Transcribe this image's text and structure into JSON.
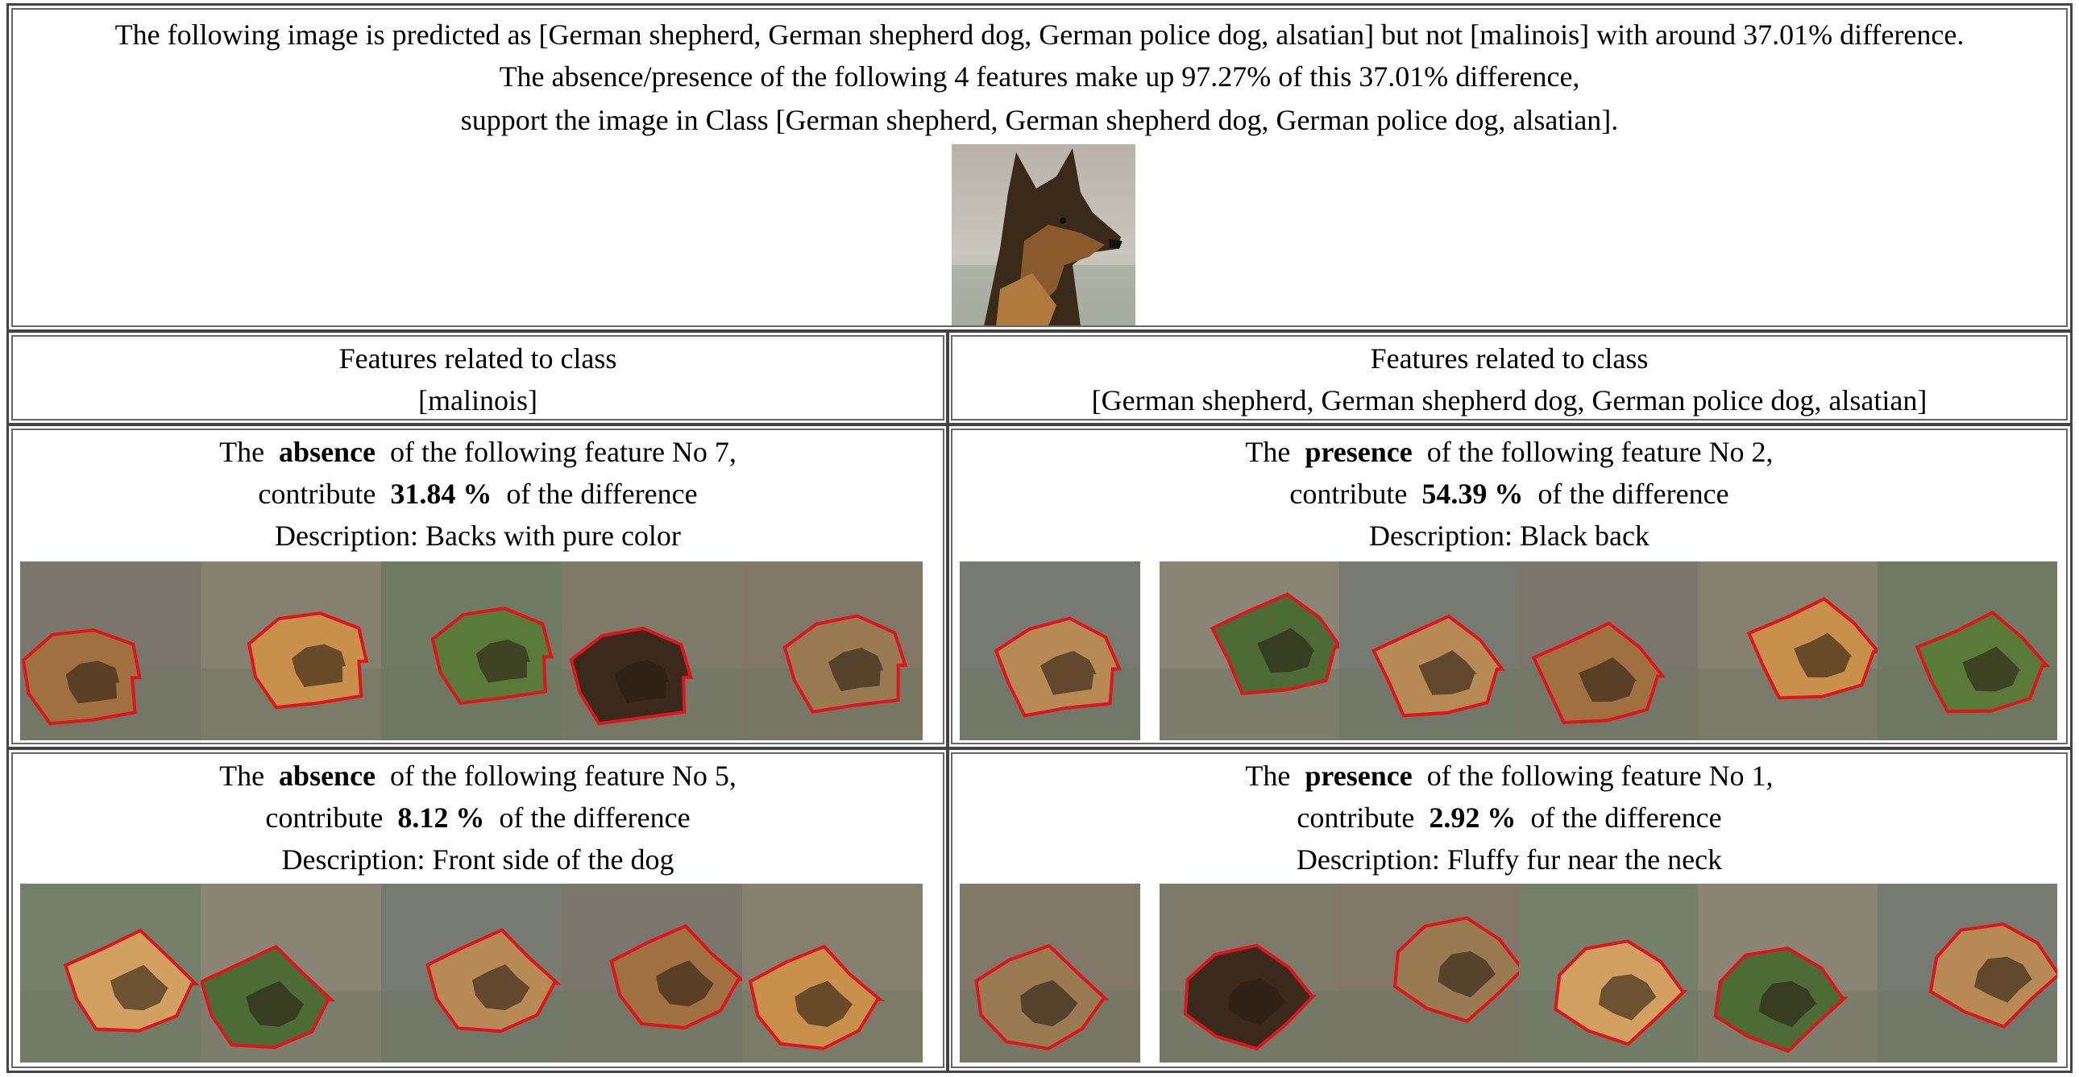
{
  "header": {
    "line1": "The following image is predicted as [German shepherd, German shepherd dog, German police dog, alsatian] but not [malinois] with around 37.01% difference.",
    "line2": "The absence/presence of the following 4 features make up 97.27% of this 37.01% difference,",
    "line3": "support the image in Class [German shepherd, German shepherd dog, German police dog, alsatian].",
    "image_icon": "german-shepherd-portrait"
  },
  "columns": {
    "left": {
      "line1": "Features related to class",
      "line2": "[malinois]"
    },
    "right": {
      "line1": "Features related to class",
      "line2": "[German shepherd, German shepherd dog, German police dog, alsatian]"
    }
  },
  "features": [
    {
      "the": "The",
      "kind": "absence",
      "rest": "of the following feature No 7,",
      "contribute": "contribute",
      "pct": "31.84 %",
      "tail": "of the difference",
      "description": "Description: Backs with pure color"
    },
    {
      "the": "The",
      "kind": "presence",
      "rest": "of the following feature No 2,",
      "contribute": "contribute",
      "pct": "54.39 %",
      "tail": "of the difference",
      "description": "Description: Black back"
    },
    {
      "the": "The",
      "kind": "absence",
      "rest": "of the following feature No 5,",
      "contribute": "contribute",
      "pct": "8.12 %",
      "tail": "of the difference",
      "description": "Description: Front side of the dog"
    },
    {
      "the": "The",
      "kind": "presence",
      "rest": "of the following feature No 1,",
      "contribute": "contribute",
      "pct": "2.92 %",
      "tail": "of the difference",
      "description": "Description: Fluffy fur near the neck"
    }
  ],
  "colors": {
    "outline": "#e0151b",
    "dim_overlay": "#7f7a70",
    "border": "#444444"
  }
}
